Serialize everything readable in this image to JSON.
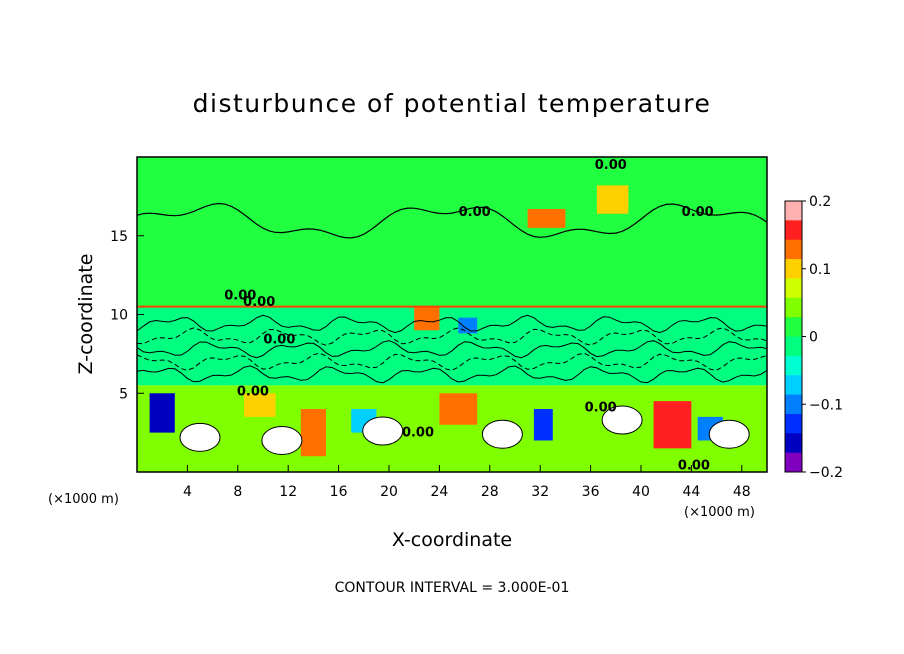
{
  "chart_data": {
    "type": "heatmap",
    "title": "disturbunce of potential temperature",
    "xlabel": "X-coordinate",
    "ylabel": "Z-coordinate",
    "x_unit": "(×1000 m)",
    "y_unit": "(×1000 m)",
    "xlim": [
      0,
      50
    ],
    "ylim": [
      0,
      20
    ],
    "x_ticks": [
      4,
      8,
      12,
      16,
      20,
      24,
      28,
      32,
      36,
      40,
      44,
      48
    ],
    "y_ticks": [
      5,
      10,
      15
    ],
    "footer": "CONTOUR INTERVAL = 3.000E-01",
    "colorbar": {
      "min": -0.2,
      "max": 0.2,
      "tick_values": [
        0.2,
        0.1,
        0,
        -0.1,
        -0.2
      ],
      "tick_labels": [
        "0.2",
        "0.1",
        "0",
        "−0.1",
        "−0.2"
      ],
      "colors": [
        "#ffb0b0",
        "#ff2020",
        "#ff7000",
        "#ffd000",
        "#d0ff00",
        "#80ff00",
        "#20ff40",
        "#00ff80",
        "#00ffd0",
        "#00d0ff",
        "#0080ff",
        "#0030ff",
        "#0000c0",
        "#8000c0"
      ]
    },
    "contour_labels": [
      {
        "text": "0.00",
        "x": 37.6,
        "z": 19.5
      },
      {
        "text": "0.00",
        "x": 26.8,
        "z": 16.5
      },
      {
        "text": "0.00",
        "x": 44.5,
        "z": 16.5
      },
      {
        "text": "0.00",
        "x": 8.2,
        "z": 11.2
      },
      {
        "text": "0.00",
        "x": 9.7,
        "z": 10.8
      },
      {
        "text": "0.00",
        "x": 11.3,
        "z": 8.4
      },
      {
        "text": "0.00",
        "x": 9.2,
        "z": 5.1
      },
      {
        "text": "0.00",
        "x": 22.3,
        "z": 2.5
      },
      {
        "text": "0.00",
        "x": 36.8,
        "z": 4.1
      },
      {
        "text": "0.00",
        "x": 44.2,
        "z": 0.4
      }
    ],
    "field_regions": [
      {
        "x": 0,
        "x2": 50,
        "z": 10.5,
        "z2": 20,
        "value": 0.02
      },
      {
        "x": 0,
        "x2": 50,
        "z": 5.5,
        "z2": 10.5,
        "value": -0.01
      },
      {
        "x": 0,
        "x2": 50,
        "z": 0,
        "z2": 5.5,
        "value": 0.03
      },
      {
        "x": 36.5,
        "x2": 39,
        "z": 16.4,
        "z2": 18.2,
        "value": 0.1
      },
      {
        "x": 31,
        "x2": 34,
        "z": 15.5,
        "z2": 16.7,
        "value": 0.14
      },
      {
        "x": 41,
        "x2": 44,
        "z": 1.5,
        "z2": 4.5,
        "value": 0.15
      },
      {
        "x": 13,
        "x2": 15,
        "z": 1,
        "z2": 4,
        "value": 0.14
      },
      {
        "x": 24,
        "x2": 27,
        "z": 3,
        "z2": 5,
        "value": 0.12
      },
      {
        "x": 8.5,
        "x2": 11,
        "z": 3.5,
        "z2": 5,
        "value": 0.1
      },
      {
        "x": 1,
        "x2": 3,
        "z": 2.5,
        "z2": 5,
        "value": -0.15
      },
      {
        "x": 31.5,
        "x2": 33,
        "z": 2,
        "z2": 4,
        "value": -0.12
      },
      {
        "x": 17,
        "x2": 19,
        "z": 2.5,
        "z2": 4,
        "value": -0.08
      },
      {
        "x": 44.5,
        "x2": 46.5,
        "z": 2,
        "z2": 3.5,
        "value": -0.1
      },
      {
        "x": 22,
        "x2": 24,
        "z": 9,
        "z2": 10.5,
        "value": 0.12
      },
      {
        "x": 25.5,
        "x2": 27,
        "z": 8.8,
        "z2": 9.8,
        "value": -0.1
      }
    ]
  }
}
